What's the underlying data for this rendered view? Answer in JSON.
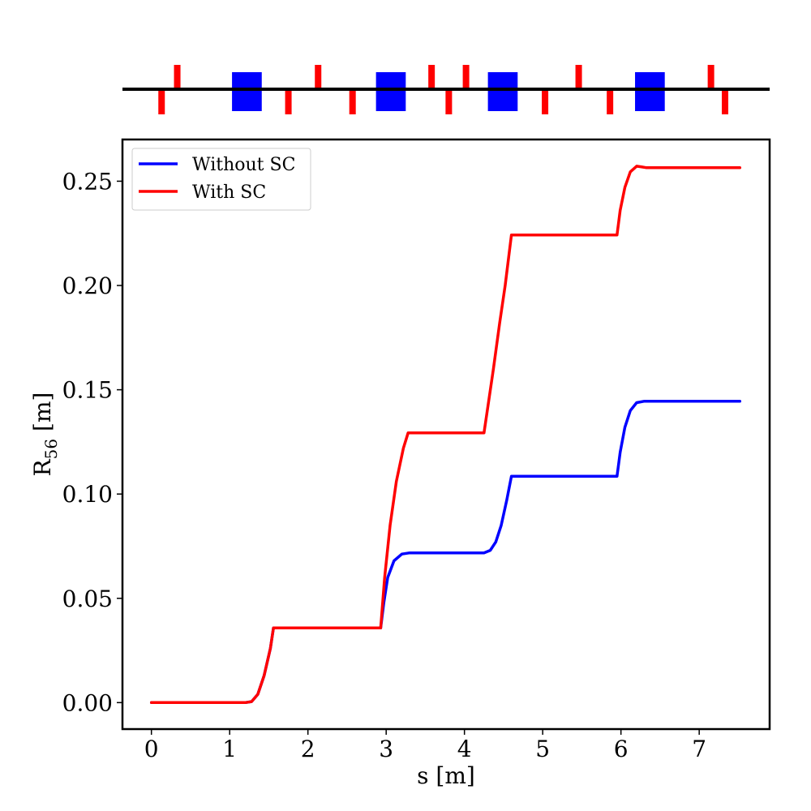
{
  "chart_data": {
    "type": "line",
    "xlabel": "s [m]",
    "ylabel_main": "R",
    "ylabel_sub": "56",
    "ylabel_unit": " [m]",
    "xlim": [
      -0.37,
      7.9
    ],
    "ylim": [
      -0.0127,
      0.27
    ],
    "xticks": [
      0,
      1,
      2,
      3,
      4,
      5,
      6,
      7
    ],
    "xtick_labels": [
      "0",
      "1",
      "2",
      "3",
      "4",
      "5",
      "6",
      "7"
    ],
    "yticks": [
      0.0,
      0.05,
      0.1,
      0.15,
      0.2,
      0.25
    ],
    "ytick_labels": [
      "0.00",
      "0.05",
      "0.10",
      "0.15",
      "0.20",
      "0.25"
    ],
    "legend_position": "top-left",
    "series": [
      {
        "name": "Without SC",
        "color": "#0000ff",
        "points": [
          [
            0.0,
            0.0
          ],
          [
            1.2,
            0.0
          ],
          [
            1.28,
            0.0005
          ],
          [
            1.36,
            0.004
          ],
          [
            1.44,
            0.013
          ],
          [
            1.52,
            0.026
          ],
          [
            1.56,
            0.0358
          ],
          [
            2.93,
            0.0358
          ],
          [
            2.97,
            0.048
          ],
          [
            3.02,
            0.06
          ],
          [
            3.1,
            0.068
          ],
          [
            3.2,
            0.0712
          ],
          [
            3.3,
            0.0718
          ],
          [
            4.25,
            0.0718
          ],
          [
            4.33,
            0.073
          ],
          [
            4.4,
            0.077
          ],
          [
            4.47,
            0.085
          ],
          [
            4.54,
            0.097
          ],
          [
            4.6,
            0.1085
          ],
          [
            5.95,
            0.1085
          ],
          [
            5.99,
            0.12
          ],
          [
            6.05,
            0.132
          ],
          [
            6.12,
            0.14
          ],
          [
            6.2,
            0.1438
          ],
          [
            6.3,
            0.1445
          ],
          [
            7.52,
            0.1445
          ]
        ]
      },
      {
        "name": "With SC",
        "color": "#ff0000",
        "points": [
          [
            0.0,
            0.0
          ],
          [
            1.2,
            0.0
          ],
          [
            1.28,
            0.0005
          ],
          [
            1.36,
            0.004
          ],
          [
            1.44,
            0.013
          ],
          [
            1.52,
            0.026
          ],
          [
            1.56,
            0.0358
          ],
          [
            2.93,
            0.0358
          ],
          [
            2.98,
            0.06
          ],
          [
            3.05,
            0.085
          ],
          [
            3.13,
            0.106
          ],
          [
            3.22,
            0.122
          ],
          [
            3.28,
            0.1293
          ],
          [
            4.25,
            0.1293
          ],
          [
            4.3,
            0.142
          ],
          [
            4.37,
            0.16
          ],
          [
            4.45,
            0.182
          ],
          [
            4.52,
            0.2
          ],
          [
            4.6,
            0.2242
          ],
          [
            5.95,
            0.2242
          ],
          [
            5.99,
            0.236
          ],
          [
            6.05,
            0.247
          ],
          [
            6.12,
            0.2545
          ],
          [
            6.2,
            0.2572
          ],
          [
            6.27,
            0.2568
          ],
          [
            6.32,
            0.2565
          ],
          [
            7.52,
            0.2565
          ]
        ]
      }
    ],
    "lattice": {
      "dipoles": [
        {
          "center": 1.22,
          "width": 0.38
        },
        {
          "center": 3.06,
          "width": 0.38
        },
        {
          "center": 4.49,
          "width": 0.38
        },
        {
          "center": 6.37,
          "width": 0.38
        }
      ],
      "quadrupoles": [
        {
          "s": 0.13,
          "polarity": "down"
        },
        {
          "s": 0.33,
          "polarity": "up"
        },
        {
          "s": 1.75,
          "polarity": "down"
        },
        {
          "s": 2.13,
          "polarity": "up"
        },
        {
          "s": 2.57,
          "polarity": "down"
        },
        {
          "s": 3.58,
          "polarity": "up"
        },
        {
          "s": 3.8,
          "polarity": "down"
        },
        {
          "s": 4.02,
          "polarity": "up"
        },
        {
          "s": 5.03,
          "polarity": "down"
        },
        {
          "s": 5.46,
          "polarity": "up"
        },
        {
          "s": 5.86,
          "polarity": "down"
        },
        {
          "s": 7.15,
          "polarity": "up"
        },
        {
          "s": 7.33,
          "polarity": "down"
        }
      ]
    }
  }
}
